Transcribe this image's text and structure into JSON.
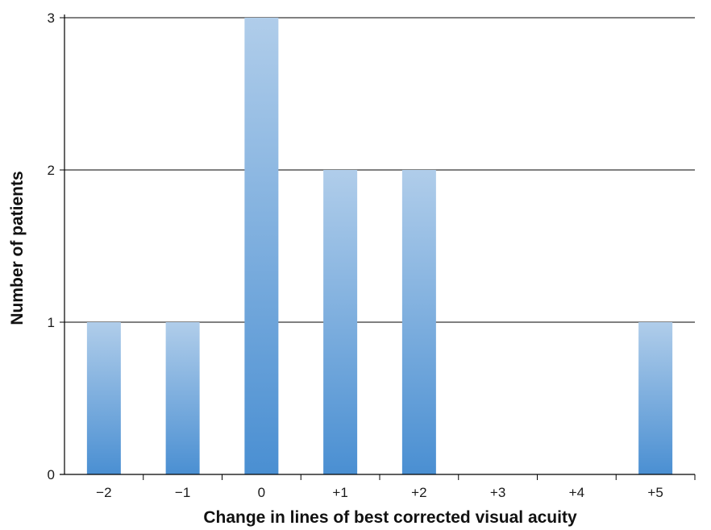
{
  "chart_data": {
    "type": "bar",
    "categories": [
      "−2",
      "−1",
      "0",
      "+1",
      "+2",
      "+3",
      "+4",
      "+5"
    ],
    "values": [
      1,
      1,
      3,
      2,
      2,
      0,
      0,
      1
    ],
    "xlabel": "Change in lines of best corrected visual acuity",
    "ylabel": "Number of patients",
    "ylim": [
      0,
      3
    ],
    "yticks": [
      0,
      1,
      2,
      3
    ],
    "grid": "horizontal",
    "legend": "none",
    "colors": {
      "bar_top": "#b0cdea",
      "bar_bottom": "#4a8fd2",
      "grid": "#000000"
    }
  }
}
